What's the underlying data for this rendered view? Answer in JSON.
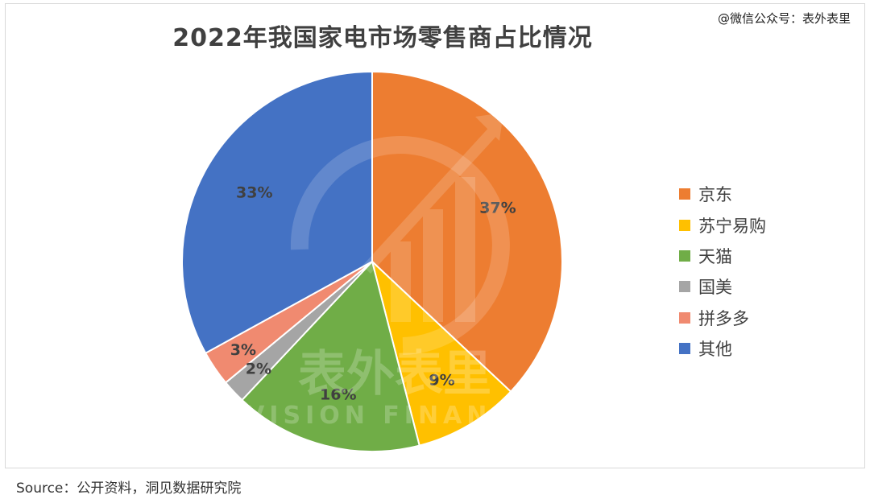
{
  "chart_data": {
    "type": "pie",
    "title": "2022年我国家电市场零售商占比情况",
    "slices": [
      {
        "label": "京东",
        "value": 37,
        "display": "37%",
        "color": "#ED7D31"
      },
      {
        "label": "苏宁易购",
        "value": 9,
        "display": "9%",
        "color": "#FFC000"
      },
      {
        "label": "天猫",
        "value": 16,
        "display": "16%",
        "color": "#70AD47"
      },
      {
        "label": "国美",
        "value": 2,
        "display": "2%",
        "color": "#A5A5A5"
      },
      {
        "label": "拼多多",
        "value": 3,
        "display": "3%",
        "color": "#F08A70"
      },
      {
        "label": "其他",
        "value": 33,
        "display": "33%",
        "color": "#4472C4"
      }
    ],
    "legend_position": "right"
  },
  "wechat_text": "@微信公众号：表外表里",
  "watermark": {
    "brand": "表外表里",
    "brand_en": "VISION FINANCE"
  },
  "source_text": "Source：公开资料，洞见数据研究院"
}
